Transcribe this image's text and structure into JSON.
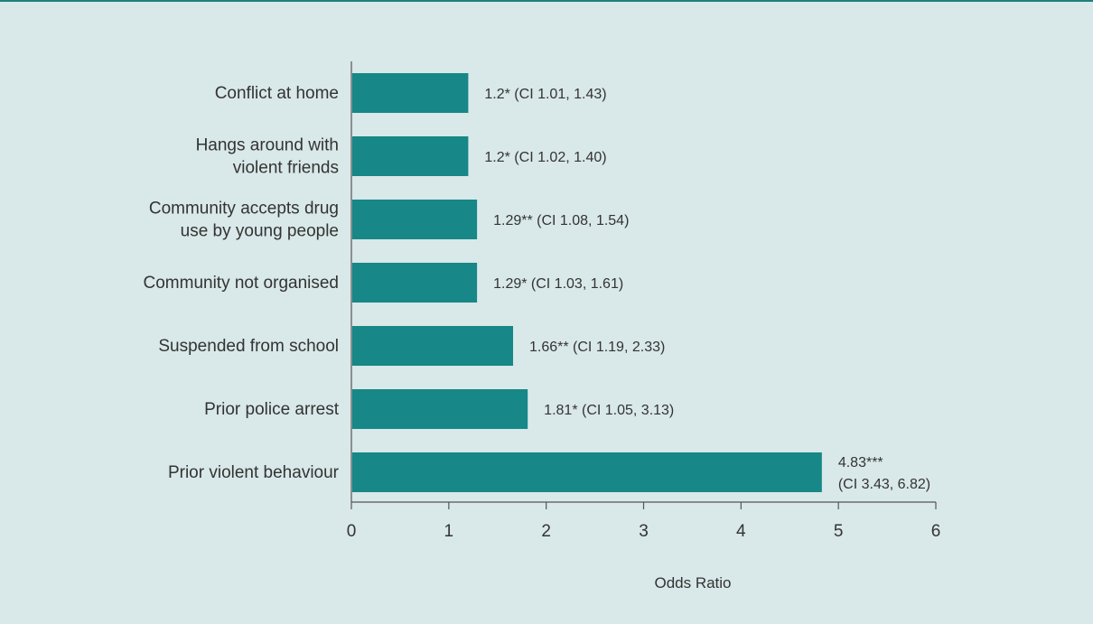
{
  "colors": {
    "background": "#d9e8e8",
    "bar": "#178787",
    "axis": "#555555",
    "accent_rule": "#1e8080"
  },
  "chart_data": {
    "type": "bar",
    "orientation": "horizontal",
    "categories": [
      [
        "Conflict at home"
      ],
      [
        "Hangs around with",
        "violent friends"
      ],
      [
        "Community accepts drug",
        "use by young people"
      ],
      [
        "Community not organised"
      ],
      [
        "Suspended from school"
      ],
      [
        "Prior police arrest"
      ],
      [
        "Prior violent behaviour"
      ]
    ],
    "values": [
      1.2,
      1.2,
      1.29,
      1.29,
      1.66,
      1.81,
      4.83
    ],
    "value_labels": [
      [
        "1.2* (CI 1.01, 1.43)"
      ],
      [
        "1.2* (CI 1.02, 1.40)"
      ],
      [
        "1.29** (CI 1.08, 1.54)"
      ],
      [
        "1.29* (CI 1.03, 1.61)"
      ],
      [
        "1.66** (CI 1.19, 2.33)"
      ],
      [
        "1.81* (CI 1.05, 3.13)"
      ],
      [
        "4.83***",
        "(CI 3.43, 6.82)"
      ]
    ],
    "xlim": [
      0,
      6
    ],
    "xticks": [
      "0",
      "1",
      "2",
      "3",
      "4",
      "5",
      "6"
    ],
    "xlabel": "Odds Ratio",
    "ylabel": "",
    "title": "",
    "grid": false,
    "legend": "none"
  }
}
